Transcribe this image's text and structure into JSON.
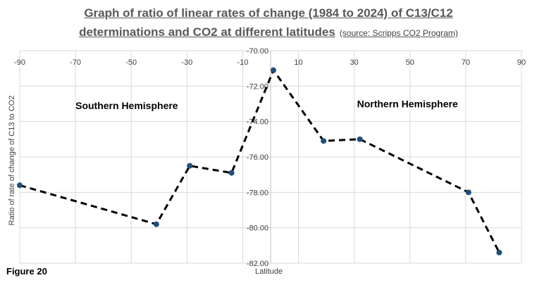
{
  "figure_label": "Figure 20",
  "chart_data": {
    "type": "line",
    "title_line1": "Graph of ratio of linear rates of change (1984 to 2024) of C13/C12",
    "title_line2": "determinations and CO2 at different latitudes",
    "source_note": "(source:  Scripps CO2 Program)",
    "xlabel": "Latitude",
    "ylabel": "Ratio of rate of change of C13 to CO2",
    "xlim": [
      -90,
      90
    ],
    "ylim": [
      -82,
      -70
    ],
    "x_ticks": [
      "-90",
      "-70",
      "-50",
      "-30",
      "-10",
      "10",
      "30",
      "50",
      "70",
      "90"
    ],
    "x_tick_values": [
      -90,
      -70,
      -50,
      -30,
      -10,
      10,
      30,
      50,
      70,
      90
    ],
    "y_ticks": [
      "-70.00",
      "-72.00",
      "-74.00",
      "-76.00",
      "-78.00",
      "-80.00",
      "-82.00"
    ],
    "y_tick_values": [
      -70,
      -72,
      -74,
      -76,
      -78,
      -80,
      -82
    ],
    "grid": true,
    "line_style": "dashed",
    "line_color": "#000000",
    "marker_color": "#1F4E79",
    "annotations": [
      {
        "text": "Southern Hemisphere",
        "x": -70,
        "y": -73.3
      },
      {
        "text": "Northern Hemisphere",
        "x": 31,
        "y": -73.2
      }
    ],
    "series": [
      {
        "x": [
          -90,
          -41,
          -29,
          -14,
          1,
          19,
          32,
          71,
          82
        ],
        "y": [
          -77.6,
          -79.8,
          -76.5,
          -76.9,
          -71.1,
          -75.1,
          -75.0,
          -78.0,
          -81.4
        ]
      }
    ]
  }
}
